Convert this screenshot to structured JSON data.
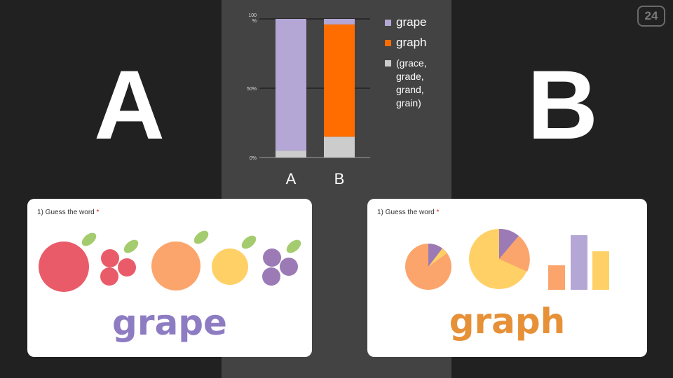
{
  "slide_number": "24",
  "left_option": {
    "letter": "A"
  },
  "right_option": {
    "letter": "B"
  },
  "chart_data": {
    "type": "bar",
    "stacked": true,
    "normalized_percent": true,
    "categories": [
      "A",
      "B"
    ],
    "series": [
      {
        "name": "(grace, grade, grand, grain)",
        "color": "#cccccc",
        "values": [
          5,
          15
        ]
      },
      {
        "name": "graph",
        "color": "#ff6d01",
        "values": [
          0,
          81
        ]
      },
      {
        "name": "grape",
        "color": "#b4a7d6",
        "values": [
          95,
          4
        ]
      }
    ],
    "legend_order": [
      "grape",
      "graph",
      "(grace, grade, grand, grain)"
    ],
    "legend_position": "right",
    "ytick_labels": [
      "0%",
      "50%",
      "100\n%"
    ],
    "ylim": [
      0,
      100
    ],
    "grid": true
  },
  "cards": {
    "a": {
      "question": "1) Guess the word",
      "required_mark": "*",
      "word": "grape",
      "icons": [
        "apple-icon",
        "cherries-icon",
        "orange-icon",
        "lemon-icon",
        "grapes-icon"
      ]
    },
    "b": {
      "question": "1) Guess the word",
      "required_mark": "*",
      "word": "graph",
      "icons": [
        "small-pie-chart-icon",
        "large-pie-chart-icon",
        "bar-chart-icon"
      ]
    }
  },
  "colors": {
    "background": "#212121",
    "panel": "#434343",
    "grape_word": "#8e7cc3",
    "graph_word": "#e69138"
  }
}
